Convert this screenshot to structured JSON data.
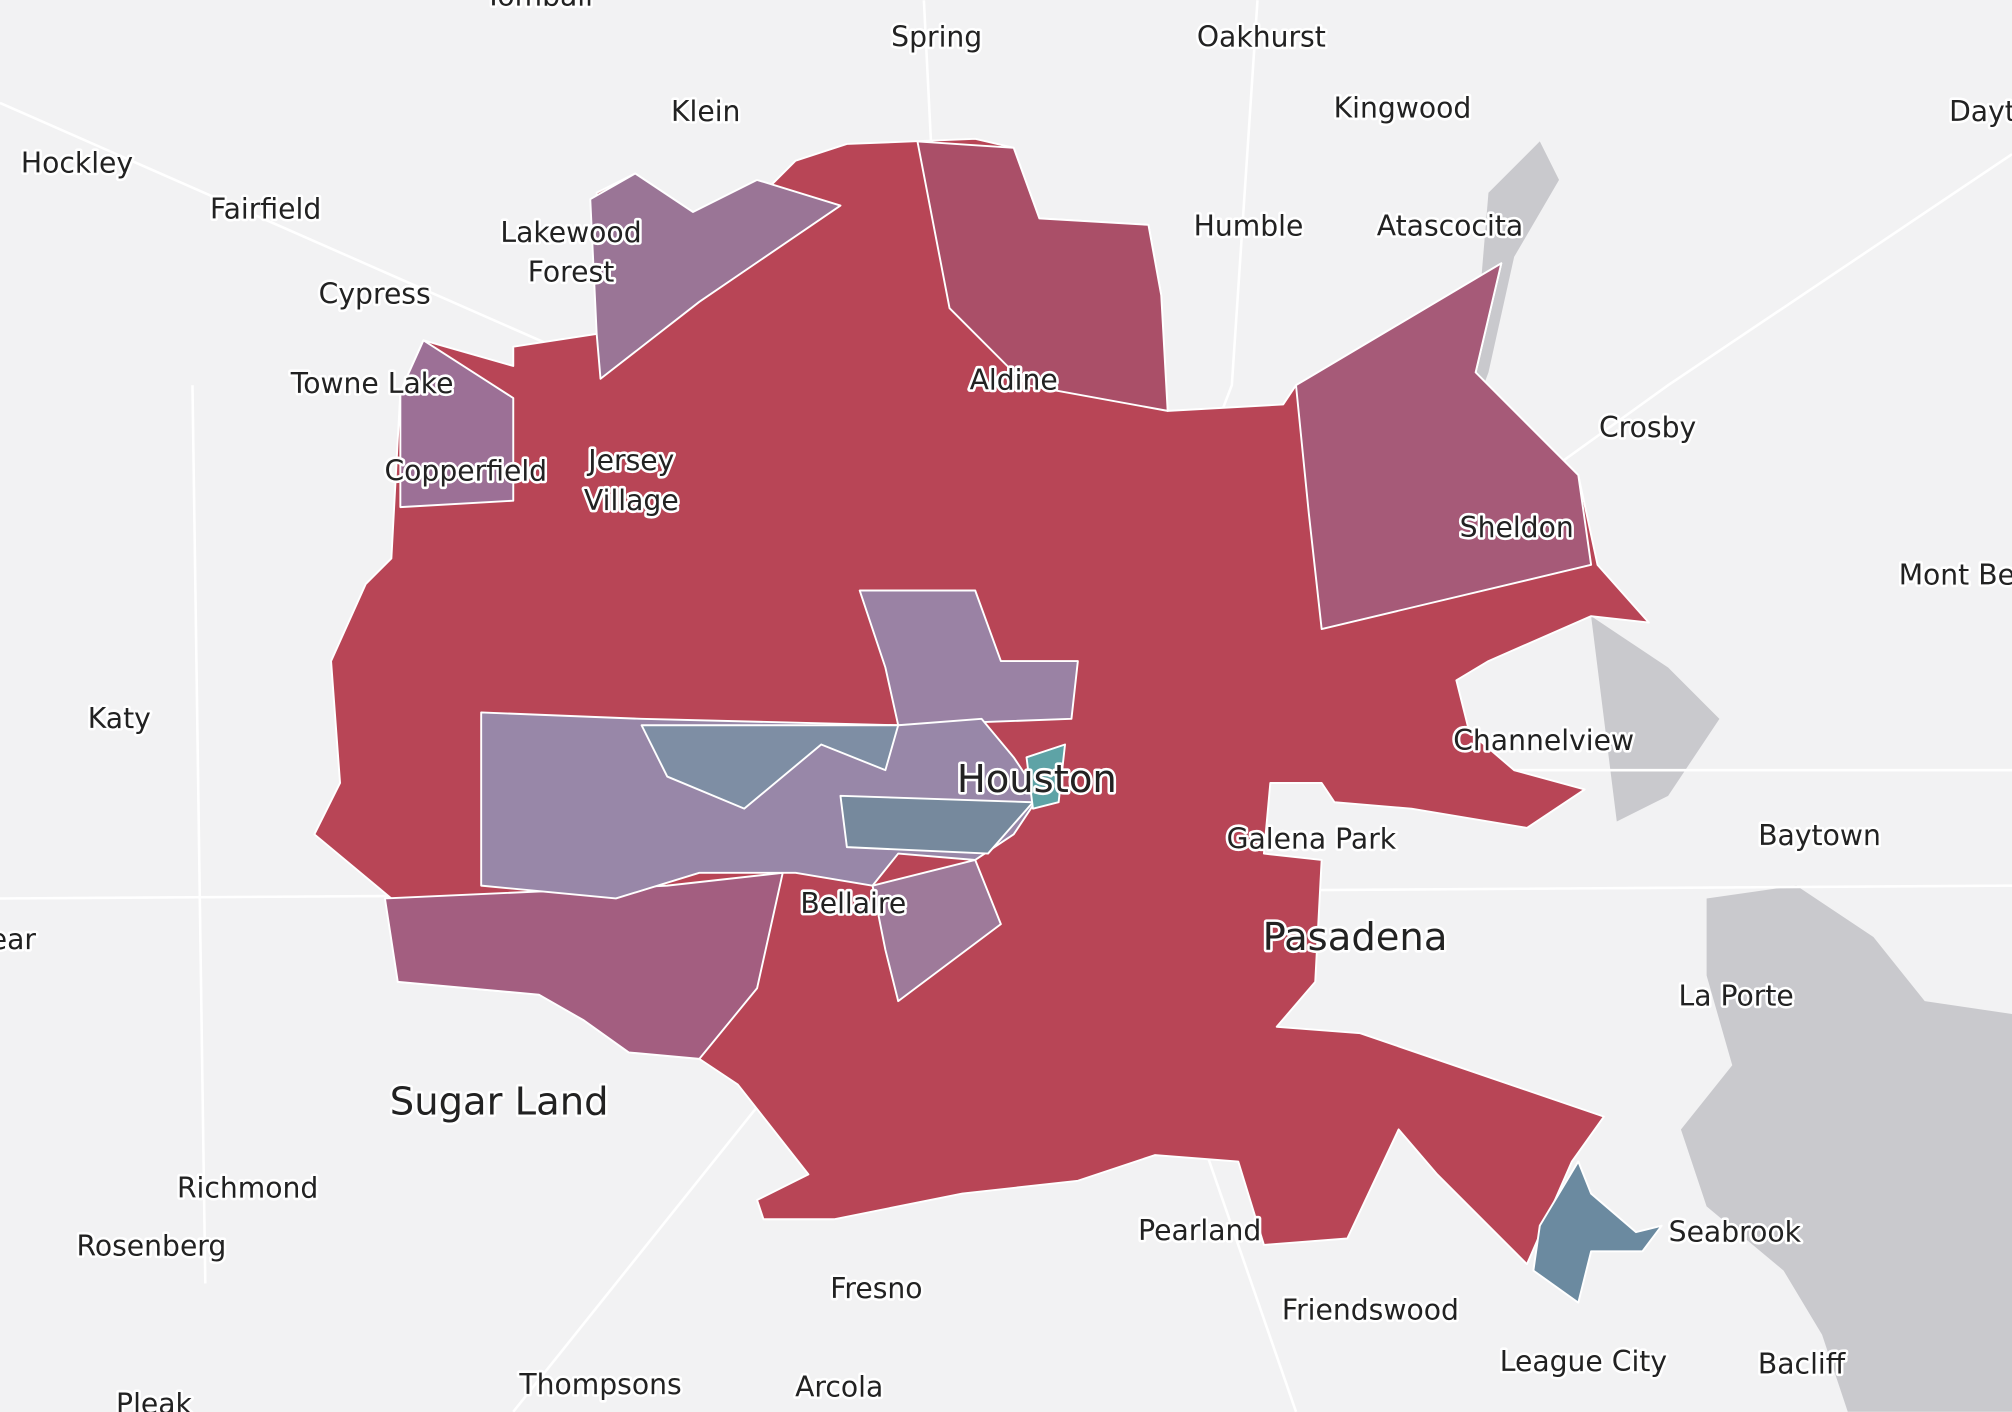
{
  "places": [
    {
      "label": "Tomball"
    },
    {
      "label": "Spring"
    },
    {
      "label": "Oakhurst"
    },
    {
      "label": "Klein"
    },
    {
      "label": "Kingwood"
    },
    {
      "label": "Dayt"
    },
    {
      "label": "Hockley"
    },
    {
      "label": "Fairfield"
    },
    {
      "label": "Lakewood"
    },
    {
      "label": "Forest"
    },
    {
      "label": "Humble"
    },
    {
      "label": "Atascocita"
    },
    {
      "label": "Cypress"
    },
    {
      "label": "Towne Lake"
    },
    {
      "label": "Aldine"
    },
    {
      "label": "Crosby"
    },
    {
      "label": "Copperfield"
    },
    {
      "label": "Jersey"
    },
    {
      "label": "Village"
    },
    {
      "label": "Sheldon"
    },
    {
      "label": "Mont Be"
    },
    {
      "label": "Katy"
    },
    {
      "label": "Channelview"
    },
    {
      "label": "Houston"
    },
    {
      "label": "Baytown"
    },
    {
      "label": "Galena Park"
    },
    {
      "label": "Bellaire"
    },
    {
      "label": "Pasadena"
    },
    {
      "label": "ear"
    },
    {
      "label": "La Porte"
    },
    {
      "label": "Sugar Land"
    },
    {
      "label": "Richmond"
    },
    {
      "label": "Rosenberg"
    },
    {
      "label": "Pearland"
    },
    {
      "label": "Seabrook"
    },
    {
      "label": "Fresno"
    },
    {
      "label": "Friendswood"
    },
    {
      "label": "League City"
    },
    {
      "label": "Bacliff"
    },
    {
      "label": "Pleak"
    },
    {
      "label": "Thompsons"
    },
    {
      "label": "Arcola"
    }
  ]
}
